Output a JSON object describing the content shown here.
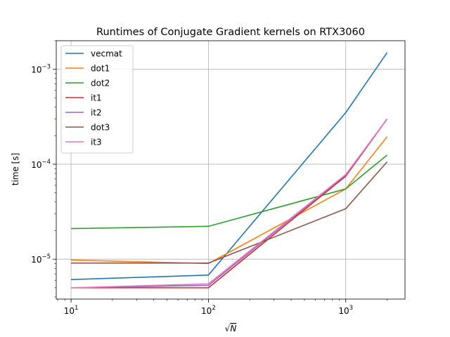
{
  "chart_data": {
    "type": "line",
    "title": "Runtimes of Conjugate Gradient kernels on RTX3060",
    "xlabel": "√N",
    "ylabel": "time [s]",
    "xscale": "log",
    "yscale": "log",
    "xlim": [
      7.8,
      2700
    ],
    "ylim": [
      3.8e-06,
      0.002
    ],
    "grid": true,
    "legend_position": "upper-left",
    "x": [
      10,
      100,
      1000,
      2000
    ],
    "x_ticks": [
      {
        "value": 10,
        "base": "10",
        "exp": "1"
      },
      {
        "value": 100,
        "base": "10",
        "exp": "2"
      },
      {
        "value": 1000,
        "base": "10",
        "exp": "3"
      }
    ],
    "y_ticks": [
      {
        "value": 1e-05,
        "base": "10",
        "exp": "−5"
      },
      {
        "value": 0.0001,
        "base": "10",
        "exp": "−4"
      },
      {
        "value": 0.001,
        "base": "10",
        "exp": "−3"
      }
    ],
    "series": [
      {
        "name": "vecmat",
        "color": "#1f77b4",
        "values": [
          6.1e-06,
          6.8e-06,
          0.00035,
          0.0015
        ]
      },
      {
        "name": "dot1",
        "color": "#ff7f0e",
        "values": [
          9.8e-06,
          9e-06,
          5.5e-05,
          0.000195
        ]
      },
      {
        "name": "dot2",
        "color": "#2ca02c",
        "values": [
          2.1e-05,
          2.22e-05,
          5.5e-05,
          0.000125
        ]
      },
      {
        "name": "it1",
        "color": "#d62728",
        "values": [
          5e-06,
          5e-06,
          7.5e-05,
          0.0003
        ]
      },
      {
        "name": "it2",
        "color": "#9467bd",
        "values": [
          5e-06,
          5.3e-06,
          7.7e-05,
          0.0003
        ]
      },
      {
        "name": "dot3",
        "color": "#8c564b",
        "values": [
          9.1e-06,
          9.1e-06,
          3.4e-05,
          0.000106
        ]
      },
      {
        "name": "it3",
        "color": "#e377c2",
        "values": [
          5e-06,
          5.5e-06,
          7.8e-05,
          0.0003
        ]
      }
    ]
  }
}
